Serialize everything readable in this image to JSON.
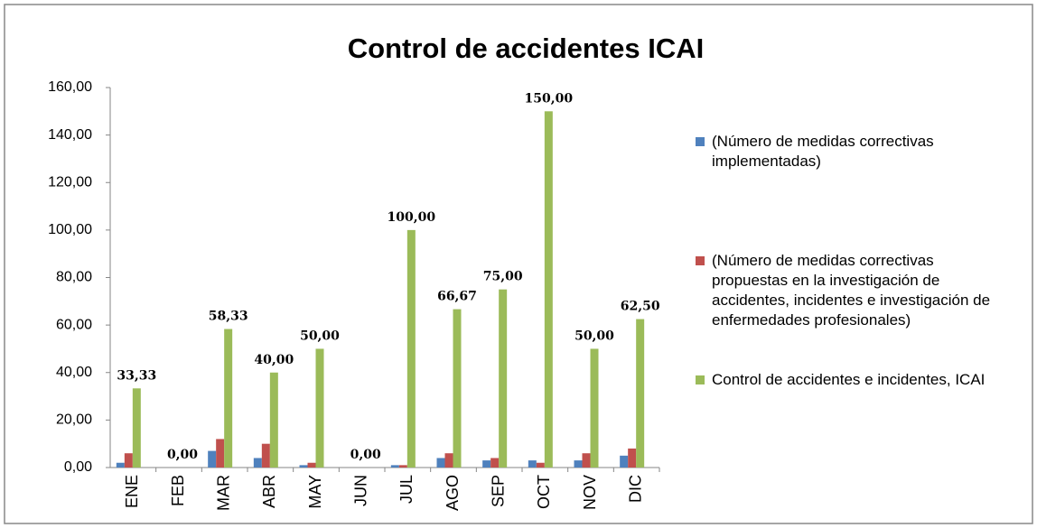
{
  "chart_data": {
    "type": "bar",
    "title": "Control de accidentes ICAI",
    "categories": [
      "ENE",
      "FEB",
      "MAR",
      "ABR",
      "MAY",
      "JUN",
      "JUL",
      "AGO",
      "SEP",
      "OCT",
      "NOV",
      "DIC"
    ],
    "series": [
      {
        "name": "(Número de medidas correctivas implementadas)",
        "color": "#4f81bd",
        "values": [
          2,
          0,
          7,
          4,
          1,
          0,
          1,
          4,
          3,
          3,
          3,
          5
        ]
      },
      {
        "name": "(Número de medidas correctivas propuestas en la investigación de accidentes, incidentes e investigación de enfermedades profesionales)",
        "color": "#c0504d",
        "values": [
          6,
          0,
          12,
          10,
          2,
          0,
          1,
          6,
          4,
          2,
          6,
          8
        ]
      },
      {
        "name": "Control de accidentes e incidentes, ICAI",
        "color": "#9bbb59",
        "values": [
          33.33,
          0,
          58.33,
          40,
          50,
          0,
          100,
          66.67,
          75,
          150,
          50,
          62.5
        ],
        "value_labels": [
          "33,33",
          "0,00",
          "58,33",
          "40,00",
          "50,00",
          "0,00",
          "100,00",
          "66,67",
          "75,00",
          "150,00",
          "50,00",
          "62,50"
        ]
      }
    ],
    "ylim": [
      0,
      160
    ],
    "yticks": [
      {
        "value": 0,
        "label": "0,00"
      },
      {
        "value": 20,
        "label": "20,00"
      },
      {
        "value": 40,
        "label": "40,00"
      },
      {
        "value": 60,
        "label": "60,00"
      },
      {
        "value": 80,
        "label": "80,00"
      },
      {
        "value": 100,
        "label": "100,00"
      },
      {
        "value": 120,
        "label": "120,00"
      },
      {
        "value": 140,
        "label": "140,00"
      },
      {
        "value": 160,
        "label": "160,00"
      }
    ],
    "legend": "right"
  }
}
